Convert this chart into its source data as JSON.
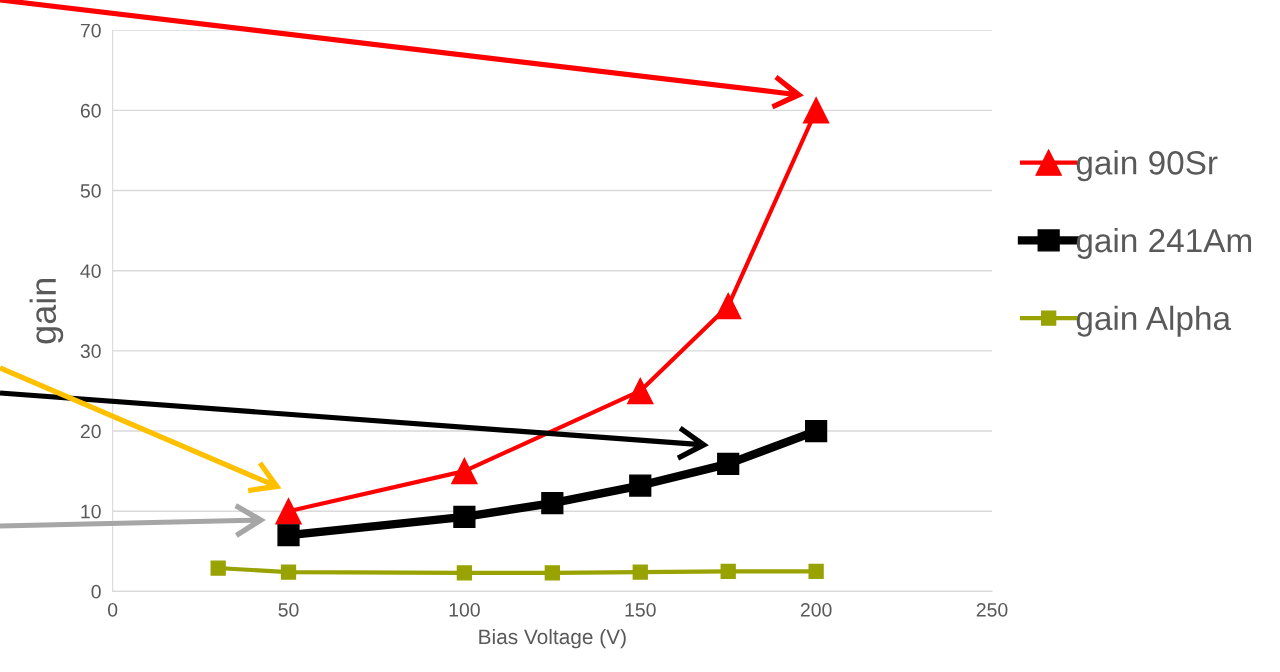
{
  "chart_data": {
    "type": "line",
    "xlabel": "Bias Voltage (V)",
    "ylabel": "gain",
    "xlim": [
      0,
      250
    ],
    "xticks": [
      0,
      50,
      100,
      150,
      200,
      250
    ],
    "ylim": [
      0,
      70
    ],
    "yticks": [
      0,
      10,
      20,
      30,
      40,
      50,
      60,
      70
    ],
    "grid": "y",
    "legend": "right",
    "series": [
      {
        "name": "gain 90Sr",
        "color": "#ff0000",
        "marker": "triangle",
        "x": [
          50,
          100,
          150,
          175,
          200
        ],
        "values": [
          10,
          15,
          25,
          35.6,
          60
        ]
      },
      {
        "name": "gain 241Am",
        "color": "#000000",
        "marker": "square",
        "x": [
          50,
          100,
          125,
          150,
          175,
          200
        ],
        "values": [
          7,
          9.3,
          11,
          13.2,
          15.9,
          20
        ]
      },
      {
        "name": "gain Alpha",
        "color": "#98a200",
        "marker": "square",
        "x": [
          30,
          50,
          100,
          125,
          150,
          175,
          200
        ],
        "values": [
          2.9,
          2.4,
          2.3,
          2.3,
          2.4,
          2.5,
          2.5
        ]
      }
    ]
  }
}
